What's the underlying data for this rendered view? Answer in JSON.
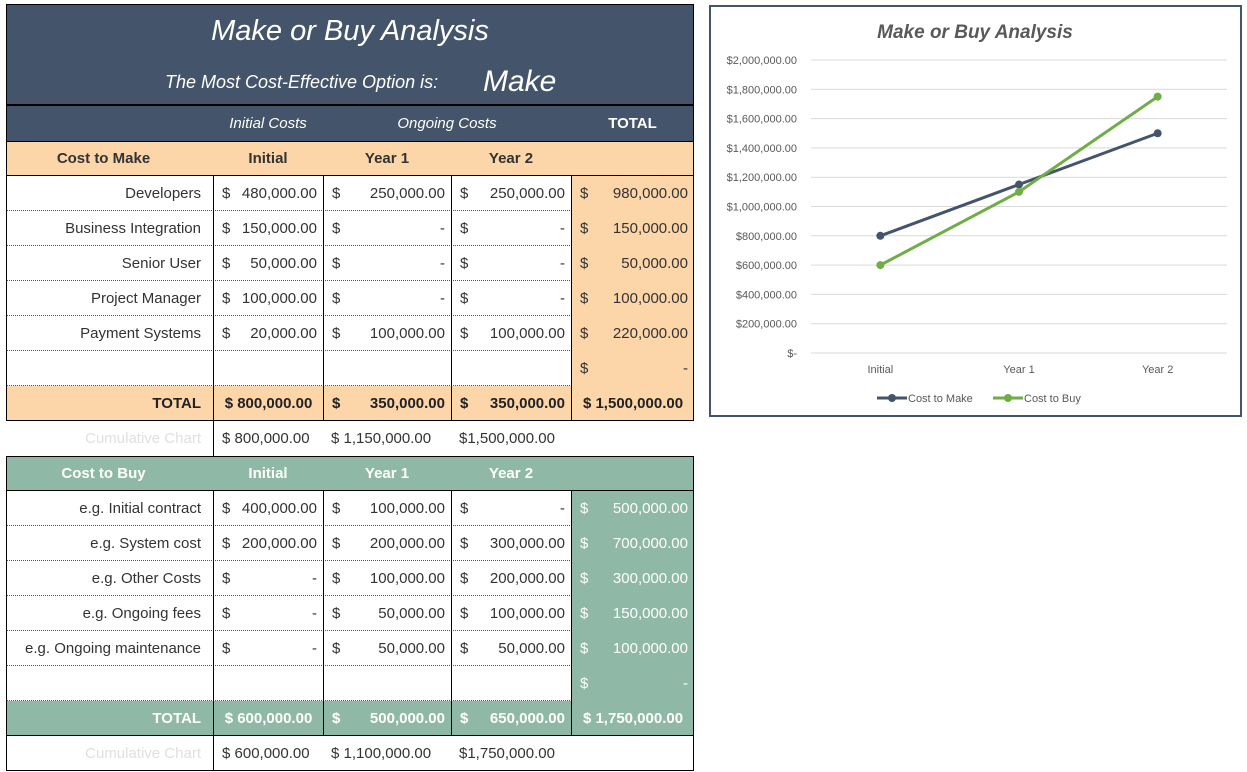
{
  "header": {
    "title": "Make or Buy Analysis",
    "subtitle": "The Most Cost-Effective Option is:",
    "answer": "Make"
  },
  "columns": {
    "initial_costs": "Initial Costs",
    "ongoing_costs": "Ongoing Costs",
    "total": "TOTAL"
  },
  "make": {
    "header": [
      "Cost to Make",
      "Initial",
      "Year 1",
      "Year 2",
      ""
    ],
    "rows": [
      {
        "label": "Developers",
        "initial": "480,000.00",
        "y1": "250,000.00",
        "y2": "250,000.00",
        "total": "980,000.00"
      },
      {
        "label": "Business Integration",
        "initial": "150,000.00",
        "y1": "-",
        "y2": "-",
        "total": "150,000.00"
      },
      {
        "label": "Senior User",
        "initial": "50,000.00",
        "y1": "-",
        "y2": "-",
        "total": "50,000.00"
      },
      {
        "label": "Project Manager",
        "initial": "100,000.00",
        "y1": "-",
        "y2": "-",
        "total": "100,000.00"
      },
      {
        "label": "Payment Systems",
        "initial": "20,000.00",
        "y1": "100,000.00",
        "y2": "100,000.00",
        "total": "220,000.00"
      },
      {
        "label": "",
        "initial": "",
        "y1": "",
        "y2": "",
        "total": "-"
      }
    ],
    "total": {
      "label": "TOTAL",
      "initial": "$ 800,000.00",
      "y1": "350,000.00",
      "y2": "350,000.00",
      "total": "$ 1,500,000.00"
    },
    "cumulative": {
      "label": "Cumulative Chart",
      "initial": "$ 800,000.00",
      "y1": "$ 1,150,000.00",
      "y2": "$1,500,000.00"
    }
  },
  "buy": {
    "header": [
      "Cost to Buy",
      "Initial",
      "Year 1",
      "Year 2",
      ""
    ],
    "rows": [
      {
        "label": "e.g. Initial contract",
        "initial": "400,000.00",
        "y1": "100,000.00",
        "y2": "-",
        "total": "500,000.00"
      },
      {
        "label": "e.g. System cost",
        "initial": "200,000.00",
        "y1": "200,000.00",
        "y2": "300,000.00",
        "total": "700,000.00"
      },
      {
        "label": "e.g. Other Costs",
        "initial": "-",
        "y1": "100,000.00",
        "y2": "200,000.00",
        "total": "300,000.00"
      },
      {
        "label": "e.g. Ongoing fees",
        "initial": "-",
        "y1": "50,000.00",
        "y2": "100,000.00",
        "total": "150,000.00"
      },
      {
        "label": "e.g. Ongoing maintenance",
        "initial": "-",
        "y1": "50,000.00",
        "y2": "50,000.00",
        "total": "100,000.00"
      },
      {
        "label": "",
        "initial": "",
        "y1": "",
        "y2": "",
        "total": "-"
      }
    ],
    "total": {
      "label": "TOTAL",
      "initial": "$ 600,000.00",
      "y1": "500,000.00",
      "y2": "650,000.00",
      "total": "$ 1,750,000.00"
    },
    "cumulative": {
      "label": "Cumulative Chart",
      "initial": "$ 600,000.00",
      "y1": "$ 1,100,000.00",
      "y2": "$1,750,000.00"
    }
  },
  "currency_symbol": "$",
  "chart_data": {
    "type": "line",
    "title": "Make or Buy Analysis",
    "categories": [
      "Initial",
      "Year 1",
      "Year 2"
    ],
    "series": [
      {
        "name": "Cost to Make",
        "values": [
          800000,
          1150000,
          1500000
        ],
        "color": "#44546a"
      },
      {
        "name": "Cost to Buy",
        "values": [
          600000,
          1100000,
          1750000
        ],
        "color": "#70ad47"
      }
    ],
    "ylim": [
      0,
      2000000
    ],
    "yticks": [
      "$-",
      "$200,000.00",
      "$400,000.00",
      "$600,000.00",
      "$800,000.00",
      "$1,000,000.00",
      "$1,200,000.00",
      "$1,400,000.00",
      "$1,600,000.00",
      "$1,800,000.00",
      "$2,000,000.00"
    ],
    "grid": true,
    "legend": "bottom"
  },
  "colors": {
    "header": "#44546a",
    "make_accent": "#fcd5a9",
    "buy_accent": "#8fb9a6",
    "make_line": "#44546a",
    "buy_line": "#70ad47"
  }
}
